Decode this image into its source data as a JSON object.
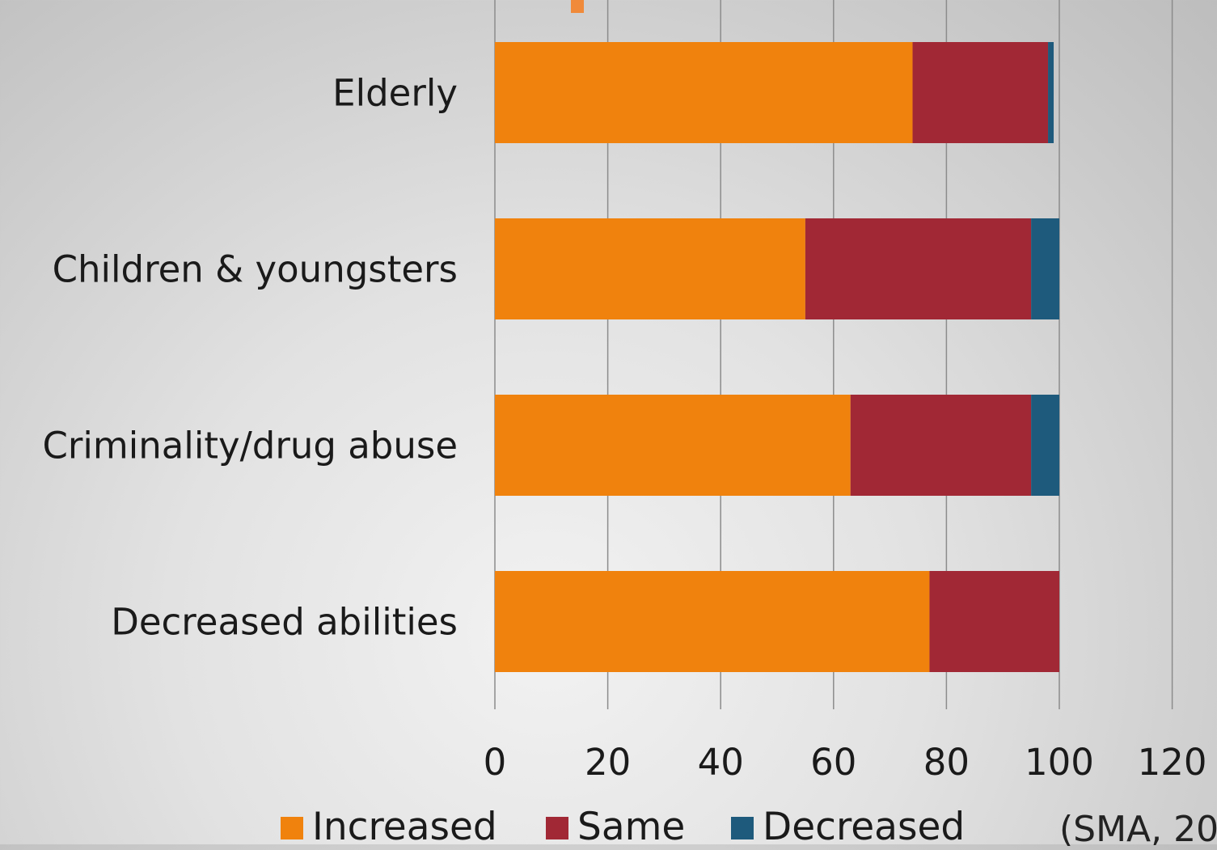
{
  "chart_data": {
    "type": "bar",
    "orientation": "horizontal",
    "stacked": true,
    "categories": [
      "Elderly",
      "Children & youngsters",
      "Criminality/drug abuse",
      "Decreased abilities"
    ],
    "series": [
      {
        "name": "Increased",
        "values": [
          74,
          55,
          63,
          77
        ],
        "color": "#f0820d"
      },
      {
        "name": "Same",
        "values": [
          24,
          40,
          32,
          23
        ],
        "color": "#a12835"
      },
      {
        "name": "Decreased",
        "values": [
          1,
          5,
          5,
          0
        ],
        "color": "#1e5a7c"
      }
    ],
    "xlim": [
      0,
      120
    ],
    "xticks": [
      "0",
      "20",
      "40",
      "60",
      "80",
      "100",
      "120"
    ],
    "grid": "vertical",
    "legend_position": "bottom",
    "title": "",
    "xlabel": "",
    "ylabel": ""
  },
  "source_fragment": "(SMA, 20"
}
